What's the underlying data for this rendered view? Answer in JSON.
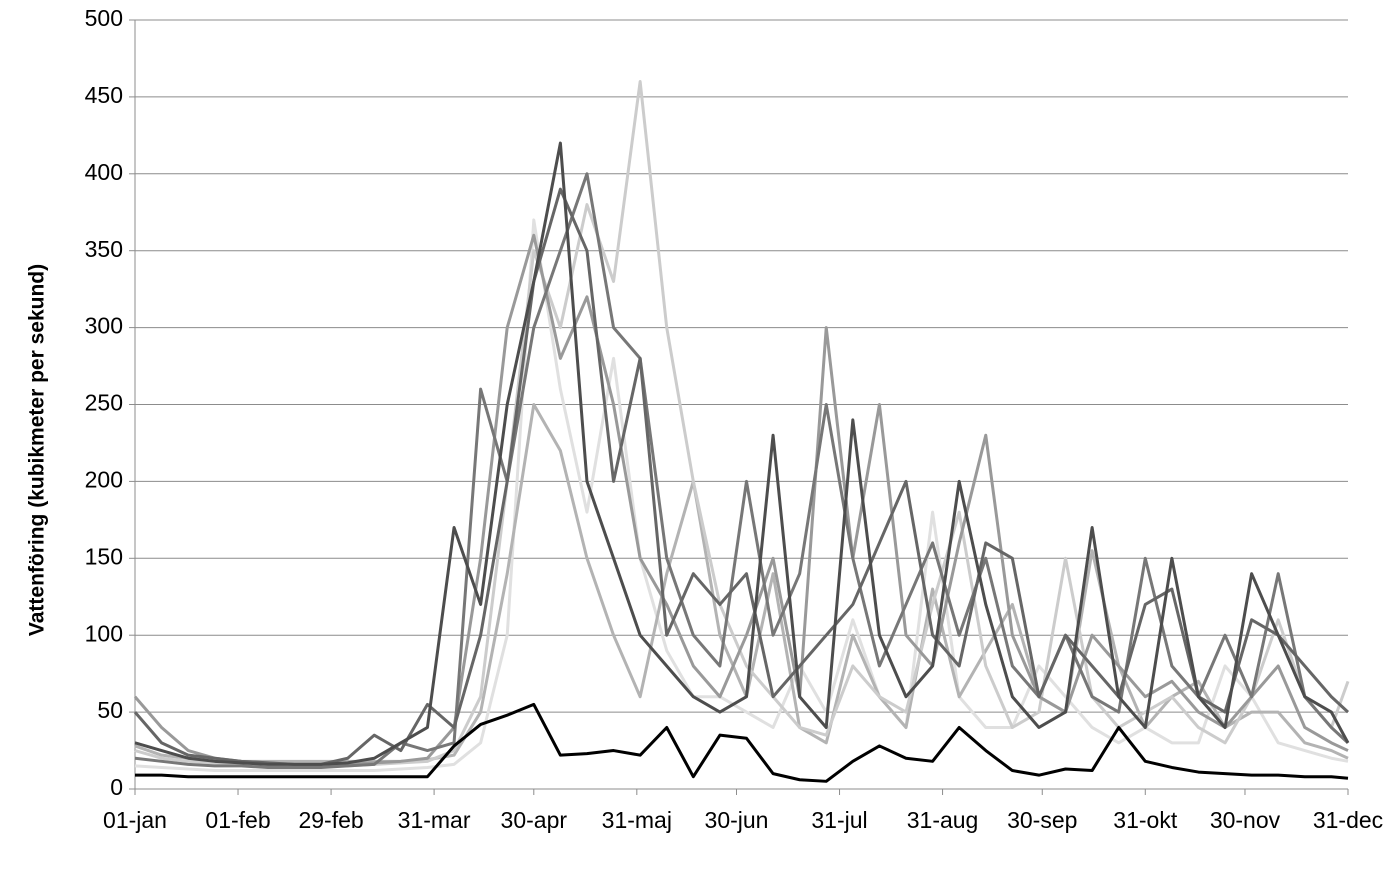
{
  "chart_data": {
    "type": "line",
    "y_label": "Vattenföring (kubikmeter per sekund)",
    "x": [
      0,
      8,
      16,
      24,
      32,
      40,
      48,
      56,
      64,
      72,
      80,
      88,
      96,
      104,
      112,
      120,
      128,
      136,
      144,
      152,
      160,
      168,
      176,
      184,
      192,
      200,
      208,
      216,
      224,
      232,
      240,
      248,
      256,
      264,
      272,
      280,
      288,
      296,
      304,
      312,
      320,
      328,
      336,
      344,
      352,
      360,
      365
    ],
    "xlim": [
      0,
      365
    ],
    "xticks": [
      {
        "value": 0,
        "label": "01-jan"
      },
      {
        "value": 31,
        "label": "01-feb"
      },
      {
        "value": 59,
        "label": "29-feb"
      },
      {
        "value": 90,
        "label": "31-mar"
      },
      {
        "value": 120,
        "label": "30-apr"
      },
      {
        "value": 151,
        "label": "31-maj"
      },
      {
        "value": 181,
        "label": "30-jun"
      },
      {
        "value": 212,
        "label": "31-jul"
      },
      {
        "value": 243,
        "label": "31-aug"
      },
      {
        "value": 273,
        "label": "30-sep"
      },
      {
        "value": 304,
        "label": "31-okt"
      },
      {
        "value": 334,
        "label": "30-nov"
      },
      {
        "value": 365,
        "label": "31-dec"
      }
    ],
    "ylim": [
      0,
      500
    ],
    "yticks": [
      0,
      50,
      100,
      150,
      200,
      250,
      300,
      350,
      400,
      450,
      500
    ],
    "grid": true,
    "series": [
      {
        "color": "#e0e0e0",
        "values": [
          15,
          14,
          13,
          12,
          12,
          12,
          12,
          12,
          12,
          12,
          13,
          14,
          16,
          30,
          100,
          370,
          260,
          180,
          280,
          150,
          90,
          60,
          60,
          50,
          40,
          80,
          50,
          110,
          60,
          40,
          180,
          60,
          40,
          40,
          80,
          60,
          40,
          30,
          40,
          30,
          30,
          80,
          60,
          30,
          25,
          20,
          18
        ]
      },
      {
        "color": "#b3b3b3",
        "values": [
          28,
          22,
          20,
          19,
          18,
          18,
          18,
          18,
          18,
          18,
          18,
          19,
          22,
          50,
          140,
          250,
          220,
          150,
          100,
          60,
          140,
          200,
          100,
          60,
          140,
          40,
          30,
          100,
          60,
          40,
          130,
          60,
          90,
          120,
          60,
          50,
          155,
          80,
          40,
          60,
          70,
          40,
          50,
          50,
          30,
          25,
          20
        ]
      },
      {
        "color": "#cccccc",
        "values": [
          25,
          20,
          18,
          17,
          16,
          16,
          15,
          15,
          15,
          16,
          17,
          18,
          25,
          60,
          200,
          350,
          300,
          380,
          330,
          460,
          300,
          200,
          120,
          80,
          60,
          40,
          35,
          80,
          60,
          50,
          120,
          180,
          80,
          40,
          50,
          150,
          60,
          40,
          50,
          60,
          40,
          30,
          60,
          110,
          60,
          40,
          70
        ]
      },
      {
        "color": "#999999",
        "values": [
          60,
          40,
          25,
          20,
          18,
          17,
          16,
          16,
          16,
          17,
          18,
          20,
          40,
          150,
          300,
          360,
          280,
          320,
          250,
          150,
          120,
          80,
          60,
          100,
          150,
          60,
          300,
          150,
          250,
          100,
          80,
          160,
          230,
          100,
          60,
          50,
          100,
          80,
          60,
          70,
          50,
          40,
          60,
          80,
          40,
          30,
          25
        ]
      },
      {
        "color": "#777777",
        "values": [
          20,
          18,
          16,
          15,
          15,
          14,
          14,
          14,
          15,
          16,
          30,
          25,
          30,
          260,
          200,
          300,
          350,
          400,
          300,
          280,
          150,
          100,
          80,
          200,
          100,
          140,
          250,
          150,
          80,
          120,
          160,
          100,
          150,
          80,
          60,
          100,
          60,
          50,
          150,
          80,
          60,
          100,
          60,
          140,
          60,
          40,
          30
        ]
      },
      {
        "color": "#666666",
        "values": [
          50,
          30,
          22,
          20,
          18,
          17,
          16,
          16,
          20,
          35,
          25,
          55,
          40,
          100,
          200,
          330,
          390,
          350,
          200,
          280,
          100,
          140,
          120,
          140,
          60,
          80,
          100,
          120,
          160,
          200,
          100,
          80,
          160,
          150,
          60,
          100,
          80,
          60,
          120,
          130,
          60,
          50,
          110,
          100,
          80,
          60,
          50
        ]
      },
      {
        "color": "#4d4d4d",
        "values": [
          30,
          25,
          20,
          18,
          17,
          16,
          16,
          16,
          17,
          20,
          30,
          40,
          170,
          120,
          250,
          330,
          420,
          200,
          150,
          100,
          80,
          60,
          50,
          60,
          230,
          60,
          40,
          240,
          100,
          60,
          80,
          200,
          120,
          60,
          40,
          50,
          170,
          60,
          40,
          150,
          60,
          40,
          140,
          100,
          60,
          50,
          30
        ]
      },
      {
        "color": "#000000",
        "values": [
          9,
          9,
          8,
          8,
          8,
          8,
          8,
          8,
          8,
          8,
          8,
          8,
          28,
          42,
          48,
          55,
          22,
          23,
          25,
          22,
          40,
          8,
          35,
          33,
          10,
          6,
          5,
          18,
          28,
          20,
          18,
          40,
          25,
          12,
          9,
          13,
          12,
          40,
          18,
          14,
          11,
          10,
          9,
          9,
          8,
          8,
          7
        ]
      }
    ]
  }
}
